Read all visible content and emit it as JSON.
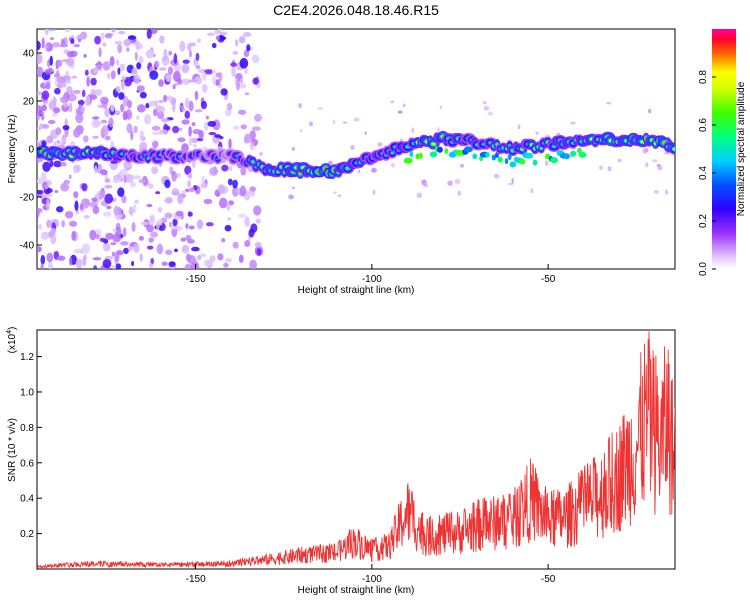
{
  "title": "C2E4.2026.048.18.46.R15",
  "chart_data": [
    {
      "type": "heatmap",
      "name": "spectrogram",
      "xlabel": "Height of straight line (km)",
      "ylabel": "Frequency (Hz)",
      "xlim": [
        -195,
        -14
      ],
      "ylim": [
        -50,
        50
      ],
      "xticks": [
        -150,
        -100,
        -50
      ],
      "yticks": [
        -40,
        -20,
        0,
        20,
        40
      ],
      "colorbar": {
        "label": "Normalized spectral amplitude",
        "range": [
          0,
          1
        ],
        "ticks": [
          0.0,
          0.2,
          0.4,
          0.6,
          0.8
        ]
      },
      "ridge": [
        {
          "x": -195,
          "y": -2,
          "amp": 0.9
        },
        {
          "x": -180,
          "y": -2,
          "amp": 0.7
        },
        {
          "x": -165,
          "y": -3,
          "amp": 0.5
        },
        {
          "x": -150,
          "y": -3,
          "amp": 0.4
        },
        {
          "x": -140,
          "y": -3,
          "amp": 0.35
        },
        {
          "x": -130,
          "y": -8,
          "amp": 0.7
        },
        {
          "x": -120,
          "y": -9,
          "amp": 0.8
        },
        {
          "x": -110,
          "y": -9,
          "amp": 0.95
        },
        {
          "x": -100,
          "y": -3,
          "amp": 0.6
        },
        {
          "x": -90,
          "y": 1,
          "amp": 0.7
        },
        {
          "x": -80,
          "y": 4,
          "amp": 0.8
        },
        {
          "x": -70,
          "y": 3,
          "amp": 0.6
        },
        {
          "x": -60,
          "y": 0,
          "amp": 0.65
        },
        {
          "x": -50,
          "y": 2,
          "amp": 0.7
        },
        {
          "x": -40,
          "y": 3,
          "amp": 0.7
        },
        {
          "x": -30,
          "y": 4,
          "amp": 0.8
        },
        {
          "x": -20,
          "y": 3,
          "amp": 0.95
        },
        {
          "x": -14,
          "y": 1,
          "amp": 0.9
        }
      ],
      "noise_region_x": [
        -195,
        -132
      ]
    },
    {
      "type": "line",
      "name": "snr",
      "xlabel": "Height of straight line (km)",
      "ylabel": "SNR (10 * v/v)",
      "scale_label": "(x10",
      "scale_exponent": "4",
      "scale_close": ")",
      "xlim": [
        -195,
        -14
      ],
      "ylim": [
        0,
        1.35
      ],
      "xticks": [
        -150,
        -100,
        -50
      ],
      "yticks": [
        0.2,
        0.4,
        0.6,
        0.8,
        1.0,
        1.2
      ],
      "color": "#ee3333",
      "envelope": [
        {
          "x": -195,
          "y": 0.02
        },
        {
          "x": -180,
          "y": 0.04
        },
        {
          "x": -160,
          "y": 0.03
        },
        {
          "x": -140,
          "y": 0.04
        },
        {
          "x": -130,
          "y": 0.08
        },
        {
          "x": -120,
          "y": 0.12
        },
        {
          "x": -110,
          "y": 0.14
        },
        {
          "x": -105,
          "y": 0.24
        },
        {
          "x": -100,
          "y": 0.16
        },
        {
          "x": -95,
          "y": 0.2
        },
        {
          "x": -90,
          "y": 0.5
        },
        {
          "x": -85,
          "y": 0.28
        },
        {
          "x": -75,
          "y": 0.32
        },
        {
          "x": -70,
          "y": 0.38
        },
        {
          "x": -60,
          "y": 0.42
        },
        {
          "x": -55,
          "y": 0.6
        },
        {
          "x": -50,
          "y": 0.42
        },
        {
          "x": -45,
          "y": 0.45
        },
        {
          "x": -40,
          "y": 0.55
        },
        {
          "x": -35,
          "y": 0.65
        },
        {
          "x": -30,
          "y": 0.8
        },
        {
          "x": -25,
          "y": 1.05
        },
        {
          "x": -22,
          "y": 1.32
        },
        {
          "x": -18,
          "y": 1.1
        },
        {
          "x": -16,
          "y": 1.3
        },
        {
          "x": -14,
          "y": 0.9
        }
      ]
    }
  ]
}
